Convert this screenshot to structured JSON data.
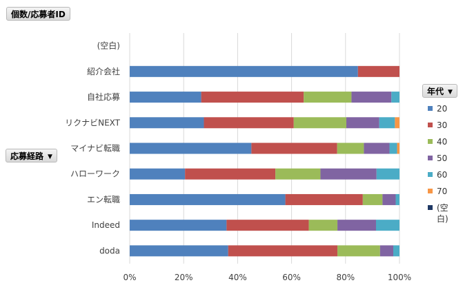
{
  "chart_data": {
    "type": "bar",
    "orientation": "horizontal",
    "stacked": "percent",
    "values_field": "個数/応募者ID",
    "row_field": {
      "label": "応募経路",
      "dropdown_icon": "dropdown-arrow-icon"
    },
    "legend_field": {
      "label": "年代",
      "dropdown_icon": "dropdown-arrow-icon"
    },
    "categories": [
      "(空白)",
      "紹介会社",
      "自社応募",
      "リクナビNEXT",
      "マイナビ転職",
      "ハローワーク",
      "エン転職",
      "Indeed",
      "doda"
    ],
    "series": [
      {
        "name": "20",
        "color": "#4f81bd",
        "values": [
          0,
          84.6,
          26.5,
          27.5,
          45.1,
          20.5,
          57.7,
          35.9,
          36.5
        ]
      },
      {
        "name": "30",
        "color": "#c0504d",
        "values": [
          0,
          15.4,
          38.0,
          33.3,
          31.8,
          33.5,
          28.7,
          30.5,
          40.5
        ]
      },
      {
        "name": "40",
        "color": "#9bbb59",
        "values": [
          0,
          0,
          17.7,
          19.5,
          9.9,
          16.7,
          7.3,
          10.6,
          15.8
        ]
      },
      {
        "name": "50",
        "color": "#8064a2",
        "values": [
          0,
          0,
          14.8,
          12.2,
          9.5,
          20.8,
          4.9,
          14.3,
          4.9
        ]
      },
      {
        "name": "60",
        "color": "#4bacc6",
        "values": [
          0,
          0,
          3.0,
          5.8,
          2.8,
          8.5,
          1.4,
          8.7,
          2.3
        ]
      },
      {
        "name": "70",
        "color": "#f79646",
        "values": [
          0,
          0,
          0,
          1.7,
          0.9,
          0,
          0,
          0,
          0
        ]
      },
      {
        "name": "(空白)",
        "color": "#1f3864",
        "values": [
          0,
          0,
          0,
          0,
          0,
          0,
          0,
          0,
          0
        ]
      }
    ],
    "x_ticks": [
      "0%",
      "20%",
      "40%",
      "60%",
      "80%",
      "100%"
    ],
    "xlim": [
      0,
      100
    ],
    "grid": true,
    "legend_position": "right"
  }
}
